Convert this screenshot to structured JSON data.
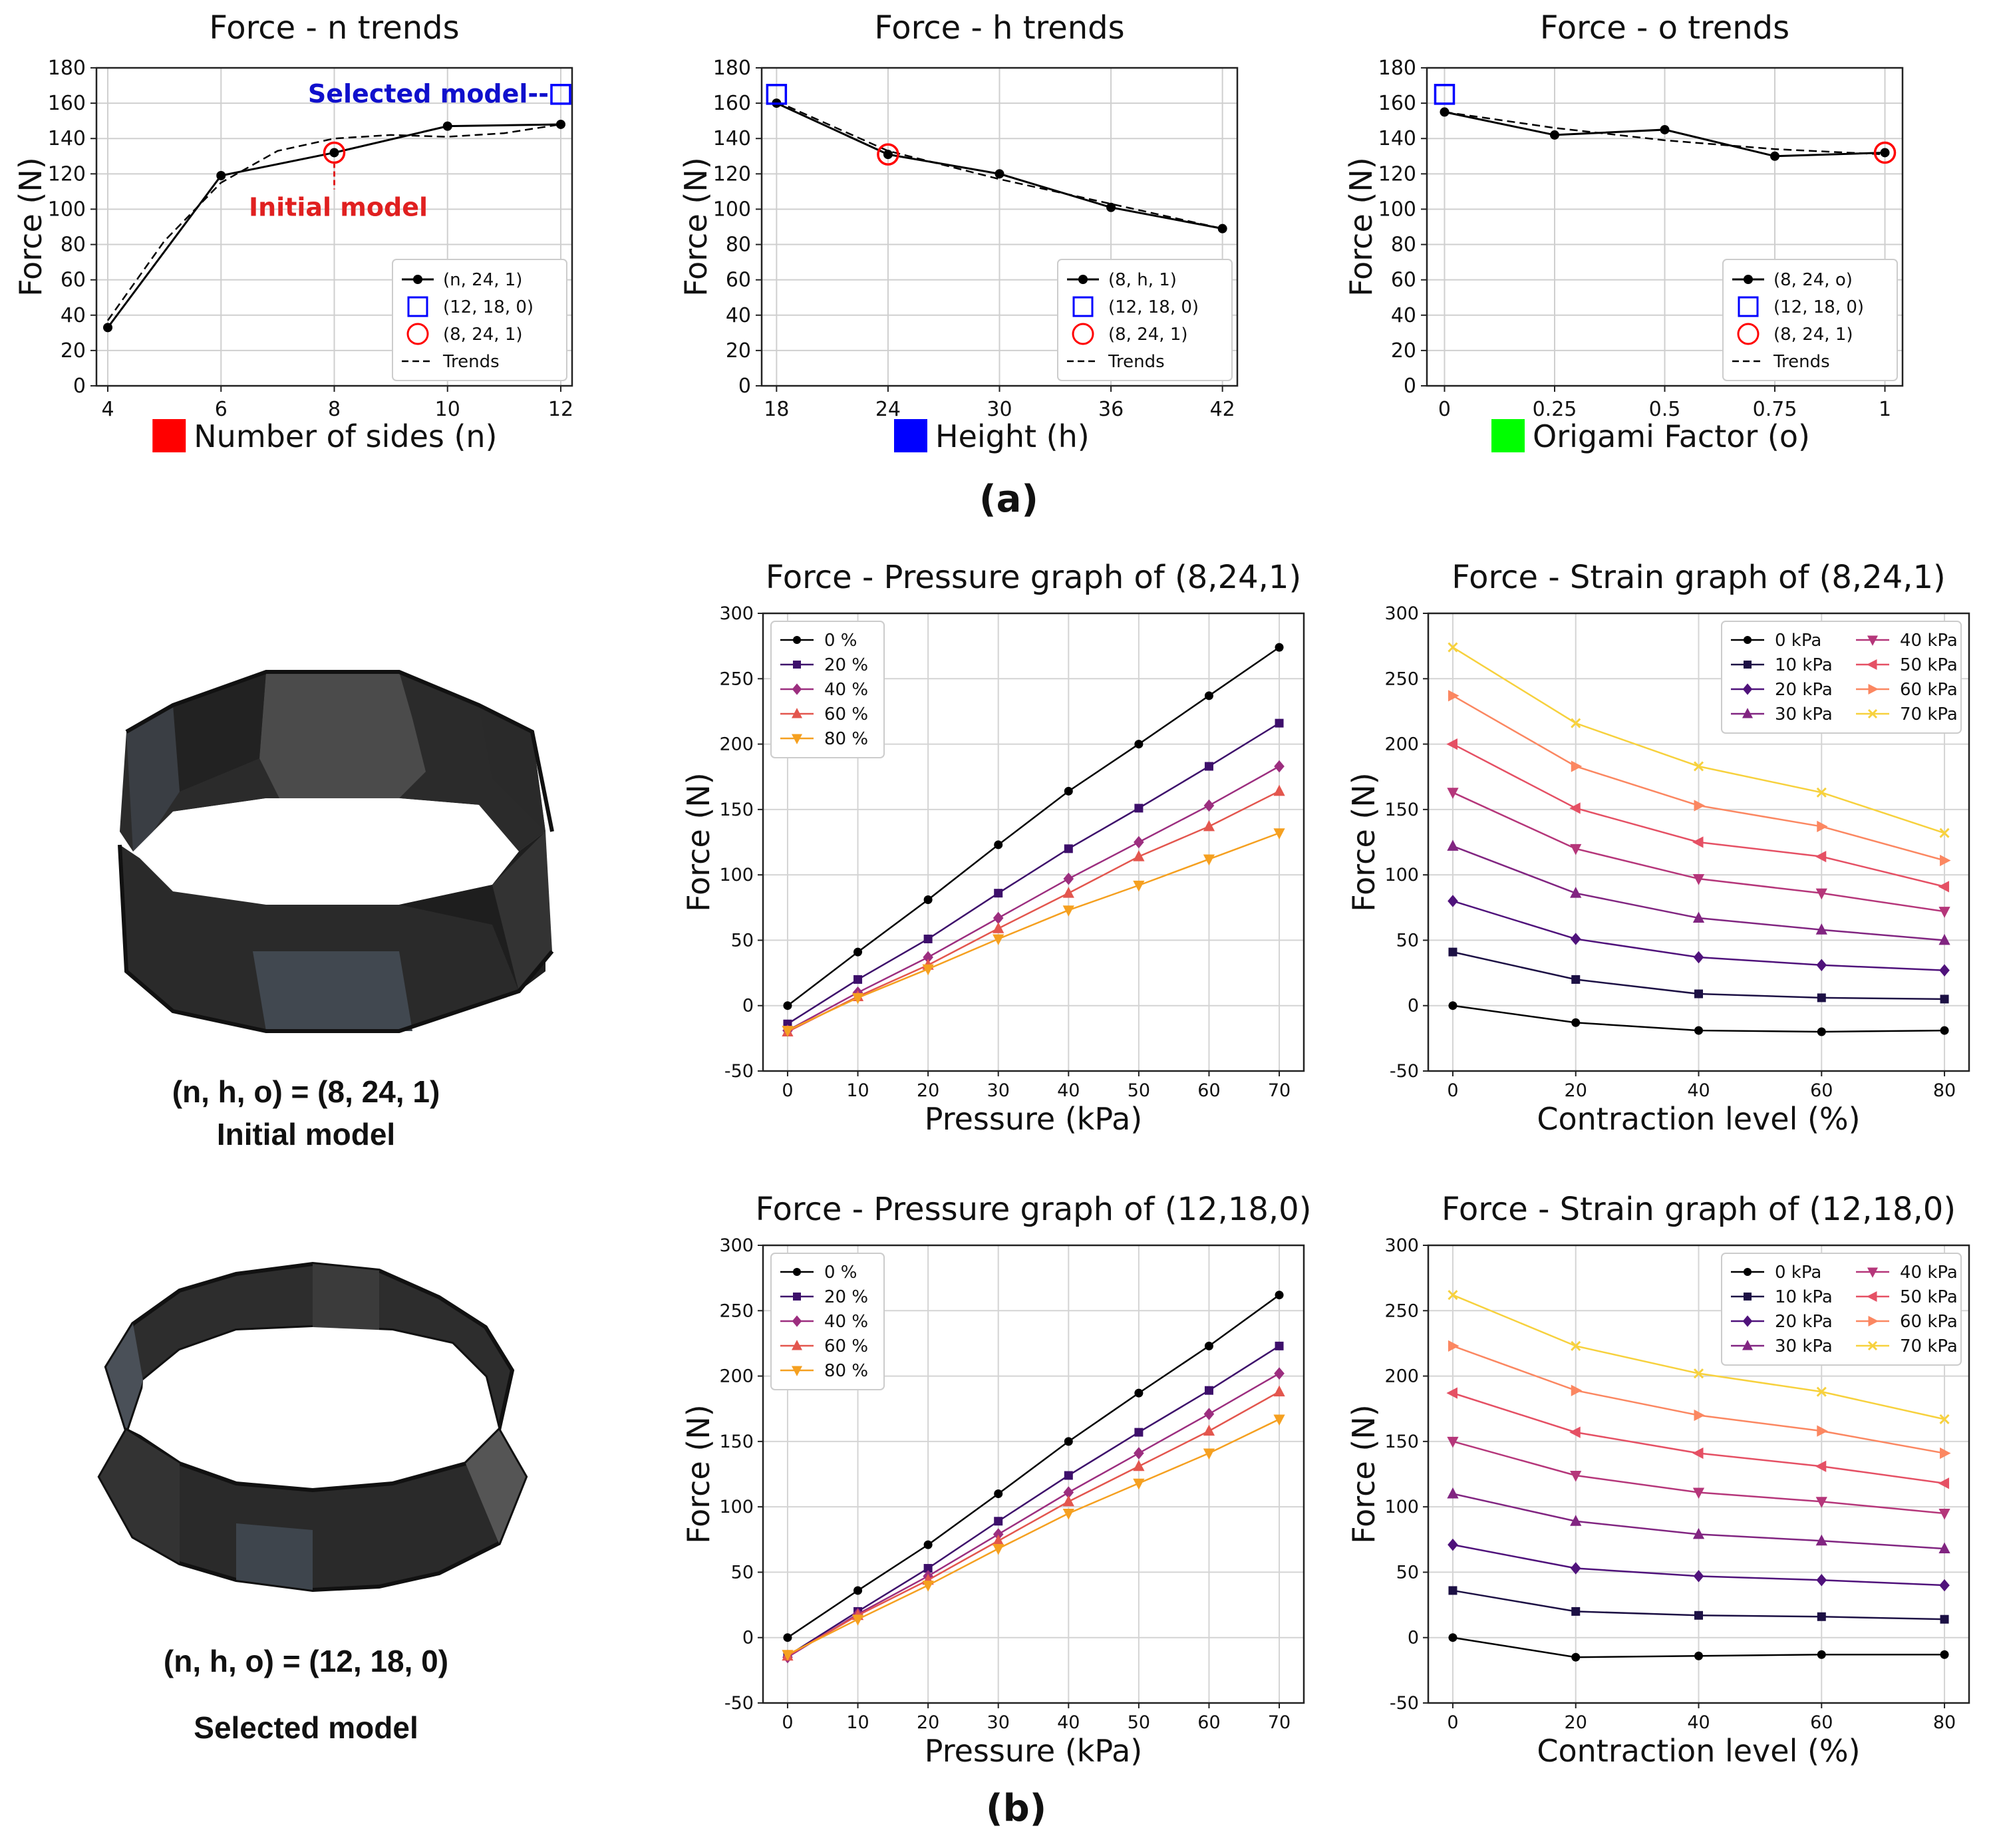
{
  "panel_labels": {
    "a": "(a)",
    "b": "(b)"
  },
  "colors": {
    "red": "#ff0000",
    "blue": "#0000ff",
    "green": "#00ff00",
    "black": "#000000",
    "selected_blue": "#1010cc",
    "initial_red": "#e02020",
    "pressure_series": [
      "#000000",
      "#3d0f6b",
      "#9c2e7f",
      "#e3564e",
      "#f5a020"
    ],
    "strain_series": [
      "#000000",
      "#1c1044",
      "#4f127b",
      "#812581",
      "#b5367a",
      "#e55064",
      "#fb8761",
      "#f7d13d"
    ]
  },
  "models": {
    "initial": {
      "line1": "(n, h, o) = (8, 24, 1)",
      "line2": "Initial model",
      "icon": "octagonal-origami-ring"
    },
    "selected": {
      "line1": "(n, h, o) = (12, 18, 0)",
      "line2": "Selected model",
      "icon": "dodecagonal-origami-ring"
    }
  },
  "chart_data": [
    {
      "id": "n_trends",
      "type": "line",
      "title": "Force - n trends",
      "xlabel": "Number of sides (n)",
      "ylabel": "Force (N)",
      "xlabel_swatch_color": "#ff0000",
      "xlim": [
        3.8,
        12.2
      ],
      "ylim": [
        0,
        180
      ],
      "xticks": [
        4,
        6,
        8,
        10,
        12
      ],
      "xtick_labels": [
        "4",
        "6",
        "8",
        "10",
        "12"
      ],
      "yticks": [
        0,
        20,
        40,
        60,
        80,
        100,
        120,
        140,
        160,
        180
      ],
      "series": [
        {
          "name": "(n, 24, 1)",
          "style": "solid-dot",
          "x": [
            4,
            6,
            8,
            10,
            12
          ],
          "y": [
            33,
            119,
            132,
            147,
            148
          ]
        },
        {
          "name": "Trends",
          "style": "dashed",
          "x": [
            4,
            5,
            6,
            7,
            8,
            9,
            10,
            11,
            12
          ],
          "y": [
            37,
            82,
            115,
            133,
            140,
            142,
            141,
            143,
            148
          ]
        }
      ],
      "markers": [
        {
          "name": "(12, 18, 0)",
          "shape": "square",
          "x": 12,
          "y": 165
        },
        {
          "name": "(8, 24, 1)",
          "shape": "circle",
          "x": 8,
          "y": 132
        }
      ],
      "annotations": {
        "selected": "Selected model",
        "initial": "Initial model"
      },
      "legend": [
        "(n, 24, 1)",
        "(12, 18, 0)",
        "(8, 24, 1)",
        "Trends"
      ]
    },
    {
      "id": "h_trends",
      "type": "line",
      "title": "Force - h trends",
      "xlabel": "Height (h)",
      "ylabel": "Force (N)",
      "xlabel_swatch_color": "#0000ff",
      "xlim": [
        17.2,
        42.8
      ],
      "ylim": [
        0,
        180
      ],
      "xticks": [
        18,
        24,
        30,
        36,
        42
      ],
      "xtick_labels": [
        "18",
        "24",
        "30",
        "36",
        "42"
      ],
      "yticks": [
        0,
        20,
        40,
        60,
        80,
        100,
        120,
        140,
        160,
        180
      ],
      "series": [
        {
          "name": "(8, h, 1)",
          "style": "solid-dot",
          "x": [
            18,
            24,
            30,
            36,
            42
          ],
          "y": [
            160,
            131,
            120,
            101,
            89
          ]
        },
        {
          "name": "Trends",
          "style": "dashed",
          "x": [
            18,
            24,
            30,
            36,
            42
          ],
          "y": [
            161,
            133,
            117,
            103,
            89
          ]
        }
      ],
      "markers": [
        {
          "name": "(12, 18, 0)",
          "shape": "square",
          "x": 18,
          "y": 165
        },
        {
          "name": "(8, 24, 1)",
          "shape": "circle",
          "x": 24,
          "y": 131
        }
      ],
      "legend": [
        "(8, h, 1)",
        "(12, 18, 0)",
        "(8, 24, 1)",
        "Trends"
      ]
    },
    {
      "id": "o_trends",
      "type": "line",
      "title": "Force - o trends",
      "xlabel": "Origami Factor (o)",
      "ylabel": "Force (N)",
      "xlabel_swatch_color": "#00ff00",
      "xlim": [
        -0.04,
        1.04
      ],
      "ylim": [
        0,
        180
      ],
      "xticks": [
        0,
        0.25,
        0.5,
        0.75,
        1
      ],
      "xtick_labels": [
        "0",
        "0.25",
        "0.5",
        "0.75",
        "1"
      ],
      "yticks": [
        0,
        20,
        40,
        60,
        80,
        100,
        120,
        140,
        160,
        180
      ],
      "series": [
        {
          "name": "(8, 24, o)",
          "style": "solid-dot",
          "x": [
            0,
            0.25,
            0.5,
            0.75,
            1
          ],
          "y": [
            155,
            142,
            145,
            130,
            132
          ]
        },
        {
          "name": "Trends",
          "style": "dashed",
          "x": [
            0,
            0.25,
            0.5,
            0.75,
            1
          ],
          "y": [
            155,
            146,
            139,
            134,
            131
          ]
        }
      ],
      "markers": [
        {
          "name": "(12, 18, 0)",
          "shape": "square",
          "x": 0,
          "y": 165
        },
        {
          "name": "(8, 24, 1)",
          "shape": "circle",
          "x": 1,
          "y": 132
        }
      ],
      "legend": [
        "(8, 24, o)",
        "(12, 18, 0)",
        "(8, 24, 1)",
        "Trends"
      ]
    },
    {
      "id": "fp_8_24_1",
      "type": "line",
      "title": "Force - Pressure graph of (8,24,1)",
      "xlabel": "Pressure (kPa)",
      "ylabel": "Force (N)",
      "xlim": [
        -3.5,
        73.5
      ],
      "ylim": [
        -50,
        300
      ],
      "xticks": [
        0,
        10,
        20,
        30,
        40,
        50,
        60,
        70
      ],
      "yticks": [
        -50,
        0,
        50,
        100,
        150,
        200,
        250,
        300
      ],
      "x": [
        0,
        10,
        20,
        30,
        40,
        50,
        60,
        70
      ],
      "series": [
        {
          "name": "0 %",
          "marker": "circle",
          "values": [
            0,
            41,
            81,
            123,
            164,
            200,
            237,
            274
          ]
        },
        {
          "name": "20 %",
          "marker": "square",
          "values": [
            -14,
            20,
            51,
            86,
            120,
            151,
            183,
            216
          ]
        },
        {
          "name": "40 %",
          "marker": "diamond",
          "values": [
            -19,
            10,
            37,
            67,
            97,
            125,
            153,
            183
          ]
        },
        {
          "name": "60 %",
          "marker": "triangle-up",
          "values": [
            -20,
            7,
            31,
            59,
            86,
            114,
            137,
            164
          ]
        },
        {
          "name": "80 %",
          "marker": "triangle-down",
          "values": [
            -19,
            6,
            28,
            51,
            73,
            92,
            112,
            132
          ]
        }
      ],
      "legend_position": "top-left"
    },
    {
      "id": "fs_8_24_1",
      "type": "line",
      "title": "Force - Strain graph of (8,24,1)",
      "xlabel": "Contraction level (%)",
      "ylabel": "Force (N)",
      "xlim": [
        -4,
        84
      ],
      "ylim": [
        -50,
        300
      ],
      "xticks": [
        0,
        20,
        40,
        60,
        80
      ],
      "yticks": [
        -50,
        0,
        50,
        100,
        150,
        200,
        250,
        300
      ],
      "x": [
        0,
        20,
        40,
        60,
        80
      ],
      "series": [
        {
          "name": "0 kPa",
          "marker": "circle",
          "values": [
            0,
            -13,
            -19,
            -20,
            -19
          ]
        },
        {
          "name": "10 kPa",
          "marker": "square",
          "values": [
            41,
            20,
            9,
            6,
            5
          ]
        },
        {
          "name": "20 kPa",
          "marker": "diamond",
          "values": [
            80,
            51,
            37,
            31,
            27
          ]
        },
        {
          "name": "30 kPa",
          "marker": "triangle-up",
          "values": [
            122,
            86,
            67,
            58,
            50
          ]
        },
        {
          "name": "40 kPa",
          "marker": "triangle-down",
          "values": [
            163,
            120,
            97,
            86,
            72
          ]
        },
        {
          "name": "50 kPa",
          "marker": "triangle-left",
          "values": [
            200,
            151,
            125,
            114,
            91
          ]
        },
        {
          "name": "60 kPa",
          "marker": "triangle-right",
          "values": [
            237,
            183,
            153,
            137,
            111
          ]
        },
        {
          "name": "70 kPa",
          "marker": "x",
          "values": [
            274,
            216,
            183,
            163,
            132
          ]
        }
      ],
      "legend_position": "top-right"
    },
    {
      "id": "fp_12_18_0",
      "type": "line",
      "title": "Force - Pressure graph of (12,18,0)",
      "xlabel": "Pressure (kPa)",
      "ylabel": "Force (N)",
      "xlim": [
        -3.5,
        73.5
      ],
      "ylim": [
        -50,
        300
      ],
      "xticks": [
        0,
        10,
        20,
        30,
        40,
        50,
        60,
        70
      ],
      "yticks": [
        -50,
        0,
        50,
        100,
        150,
        200,
        250,
        300
      ],
      "x": [
        0,
        10,
        20,
        30,
        40,
        50,
        60,
        70
      ],
      "series": [
        {
          "name": "0 %",
          "marker": "circle",
          "values": [
            0,
            36,
            71,
            110,
            150,
            187,
            223,
            262
          ]
        },
        {
          "name": "20 %",
          "marker": "square",
          "values": [
            -14,
            20,
            53,
            89,
            124,
            157,
            189,
            223
          ]
        },
        {
          "name": "40 %",
          "marker": "diamond",
          "values": [
            -15,
            18,
            47,
            79,
            111,
            141,
            171,
            202
          ]
        },
        {
          "name": "60 %",
          "marker": "triangle-up",
          "values": [
            -14,
            17,
            44,
            74,
            104,
            131,
            158,
            188
          ]
        },
        {
          "name": "80 %",
          "marker": "triangle-down",
          "values": [
            -13,
            14,
            40,
            68,
            95,
            118,
            141,
            167
          ]
        }
      ],
      "legend_position": "top-left"
    },
    {
      "id": "fs_12_18_0",
      "type": "line",
      "title": "Force - Strain graph of (12,18,0)",
      "xlabel": "Contraction level (%)",
      "ylabel": "Force (N)",
      "xlim": [
        -4,
        84
      ],
      "ylim": [
        -50,
        300
      ],
      "xticks": [
        0,
        20,
        40,
        60,
        80
      ],
      "yticks": [
        -50,
        0,
        50,
        100,
        150,
        200,
        250,
        300
      ],
      "x": [
        0,
        20,
        40,
        60,
        80
      ],
      "series": [
        {
          "name": "0 kPa",
          "marker": "circle",
          "values": [
            0,
            -15,
            -14,
            -13,
            -13
          ]
        },
        {
          "name": "10 kPa",
          "marker": "square",
          "values": [
            36,
            20,
            17,
            16,
            14
          ]
        },
        {
          "name": "20 kPa",
          "marker": "diamond",
          "values": [
            71,
            53,
            47,
            44,
            40
          ]
        },
        {
          "name": "30 kPa",
          "marker": "triangle-up",
          "values": [
            110,
            89,
            79,
            74,
            68
          ]
        },
        {
          "name": "40 kPa",
          "marker": "triangle-down",
          "values": [
            150,
            124,
            111,
            104,
            95
          ]
        },
        {
          "name": "50 kPa",
          "marker": "triangle-left",
          "values": [
            187,
            157,
            141,
            131,
            118
          ]
        },
        {
          "name": "60 kPa",
          "marker": "triangle-right",
          "values": [
            223,
            189,
            170,
            158,
            141
          ]
        },
        {
          "name": "70 kPa",
          "marker": "x",
          "values": [
            262,
            223,
            202,
            188,
            167
          ]
        }
      ],
      "legend_position": "top-right"
    }
  ]
}
